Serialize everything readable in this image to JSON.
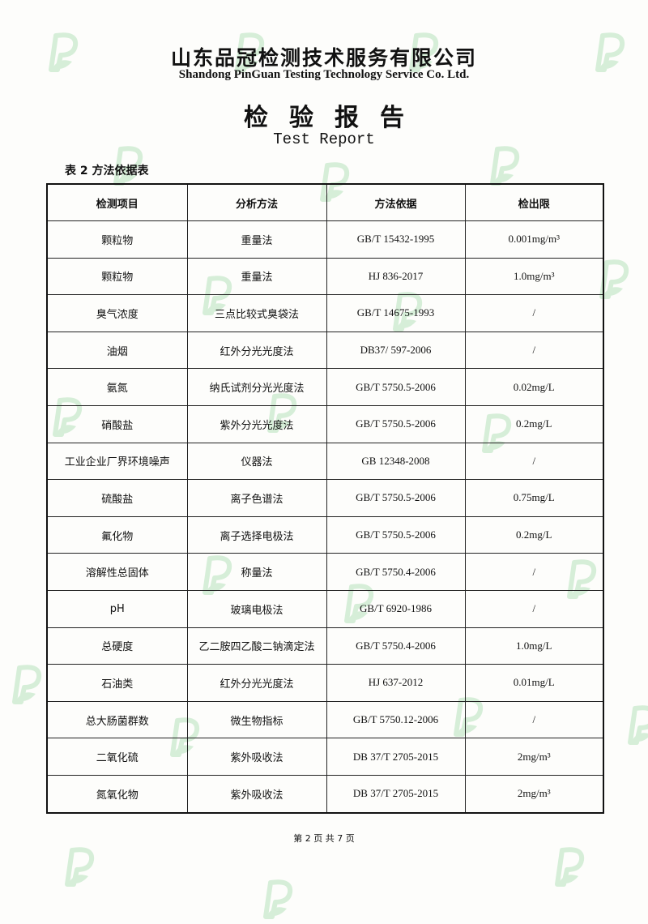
{
  "header": {
    "company_cn": "山东品冠检测技术服务有限公司",
    "company_en": "Shandong PinGuan Testing Technology Service Co. Ltd.",
    "title_cn": "检验报告",
    "title_en": "Test Report"
  },
  "table": {
    "caption": "表 2 方法依据表",
    "columns": [
      "检测项目",
      "分析方法",
      "方法依据",
      "检出限"
    ],
    "rows": [
      [
        "颗粒物",
        "重量法",
        "GB/T 15432-1995",
        "0.001mg/m³"
      ],
      [
        "颗粒物",
        "重量法",
        "HJ 836-2017",
        "1.0mg/m³"
      ],
      [
        "臭气浓度",
        "三点比较式臭袋法",
        "GB/T 14675-1993",
        "/"
      ],
      [
        "油烟",
        "红外分光光度法",
        "DB37/ 597-2006",
        "/"
      ],
      [
        "氨氮",
        "纳氏试剂分光光度法",
        "GB/T 5750.5-2006",
        "0.02mg/L"
      ],
      [
        "硝酸盐",
        "紫外分光光度法",
        "GB/T 5750.5-2006",
        "0.2mg/L"
      ],
      [
        "工业企业厂界环境噪声",
        "仪器法",
        "GB 12348-2008",
        "/"
      ],
      [
        "硫酸盐",
        "离子色谱法",
        "GB/T 5750.5-2006",
        "0.75mg/L"
      ],
      [
        "氟化物",
        "离子选择电极法",
        "GB/T 5750.5-2006",
        "0.2mg/L"
      ],
      [
        "溶解性总固体",
        "称量法",
        "GB/T 5750.4-2006",
        "/"
      ],
      [
        "pH",
        "玻璃电极法",
        "GB/T 6920-1986",
        "/"
      ],
      [
        "总硬度",
        "乙二胺四乙酸二钠滴定法",
        "GB/T 5750.4-2006",
        "1.0mg/L"
      ],
      [
        "石油类",
        "红外分光光度法",
        "HJ 637-2012",
        "0.01mg/L"
      ],
      [
        "总大肠菌群数",
        "微生物指标",
        "GB/T 5750.12-2006",
        "/"
      ],
      [
        "二氧化硫",
        "紫外吸收法",
        "DB 37/T 2705-2015",
        "2mg/m³"
      ],
      [
        "氮氧化物",
        "紫外吸收法",
        "DB 37/T 2705-2015",
        "2mg/m³"
      ]
    ]
  },
  "footer": {
    "page_label": "第 2 页 共 7 页"
  },
  "colors": {
    "watermark": "#8fd49a",
    "text": "#111111"
  },
  "watermark_icon": "pinguan-leaf-p-logo"
}
